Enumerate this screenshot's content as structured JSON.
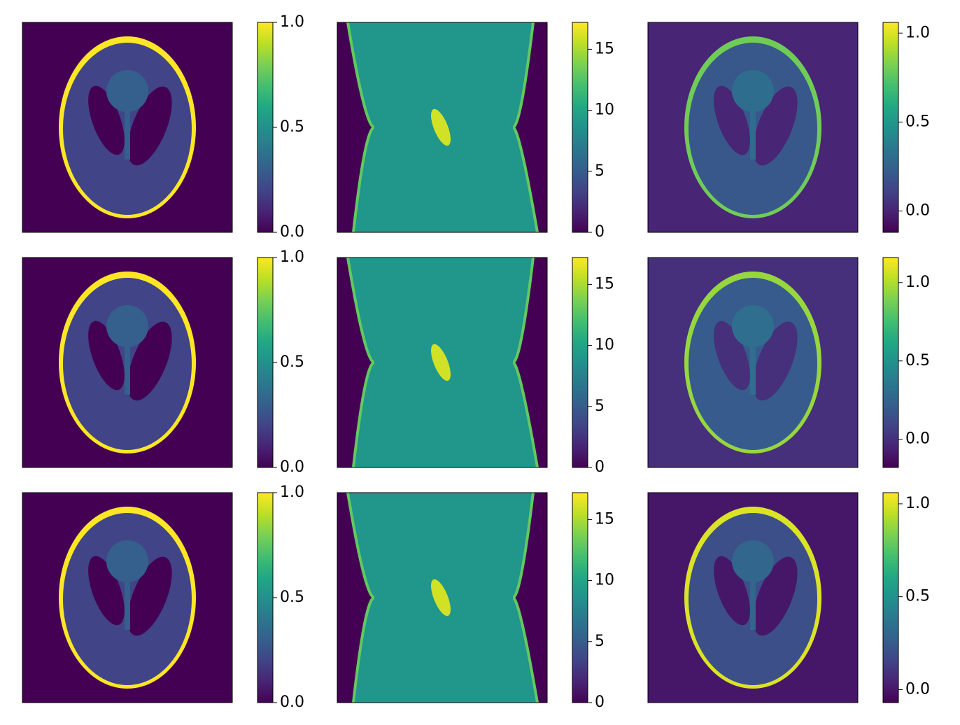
{
  "chart_data": [
    {
      "type": "phantom",
      "colormap": "viridis",
      "values": [
        0,
        1,
        0.2,
        0,
        0.3
      ],
      "clim": [
        0,
        1
      ],
      "cticks": [
        {
          "value": 0,
          "label": "0.0"
        },
        0.5,
        {
          "value": 1,
          "label": "1.0"
        }
      ]
    },
    {
      "type": "sinogram",
      "colormap": "viridis",
      "values": [
        0,
        9,
        13,
        16
      ],
      "clim": [
        0,
        17.2
      ],
      "cticks": [
        0,
        5,
        10,
        15
      ]
    },
    {
      "type": "phantom",
      "colormap": "viridis",
      "values": [
        0,
        0.8,
        0.2,
        0,
        0.3
      ],
      "clim": [
        -0.12,
        1.06
      ],
      "cticks": [
        {
          "value": 0,
          "label": "0.0"
        },
        0.5,
        {
          "value": 1,
          "label": "1.0"
        }
      ]
    },
    {
      "type": "phantom",
      "colormap": "viridis",
      "values": [
        0,
        1,
        0.2,
        0,
        0.3
      ],
      "clim": [
        0,
        1
      ],
      "cticks": [
        {
          "value": 0,
          "label": "0.0"
        },
        0.5,
        {
          "value": 1,
          "label": "1.0"
        }
      ]
    },
    {
      "type": "sinogram",
      "colormap": "viridis",
      "values": [
        0,
        9,
        13,
        16
      ],
      "clim": [
        0,
        17.2
      ],
      "cticks": [
        0,
        5,
        10,
        15
      ]
    },
    {
      "type": "phantom",
      "colormap": "viridis",
      "values": [
        0,
        0.95,
        0.2,
        0,
        0.3
      ],
      "clim": [
        -0.18,
        1.16
      ],
      "cticks": [
        {
          "value": 0,
          "label": "0.0"
        },
        0.5,
        {
          "value": 1,
          "label": "1.0"
        }
      ]
    },
    {
      "type": "phantom",
      "colormap": "viridis",
      "values": [
        0,
        1,
        0.2,
        0,
        0.3
      ],
      "clim": [
        0,
        1
      ],
      "cticks": [
        {
          "value": 0,
          "label": "0.0"
        },
        0.5,
        {
          "value": 1,
          "label": "1.0"
        }
      ]
    },
    {
      "type": "sinogram",
      "colormap": "viridis",
      "values": [
        0,
        9,
        13,
        16
      ],
      "clim": [
        0,
        17.2
      ],
      "cticks": [
        0,
        5,
        10,
        15
      ]
    },
    {
      "type": "phantom",
      "colormap": "viridis",
      "values": [
        0,
        1,
        0.2,
        0,
        0.3
      ],
      "clim": [
        -0.07,
        1.06
      ],
      "cticks": [
        {
          "value": 0,
          "label": "0.0"
        },
        0.5,
        {
          "value": 1,
          "label": "1.0"
        }
      ]
    }
  ]
}
